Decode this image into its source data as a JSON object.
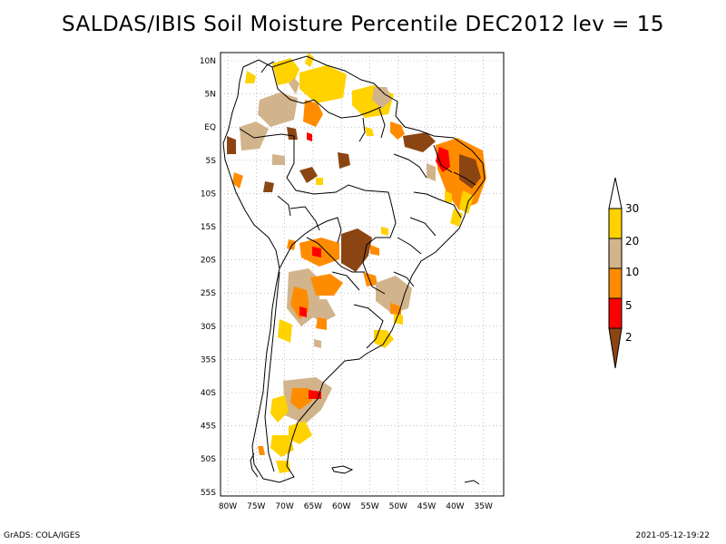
{
  "title": "SALDAS/IBIS Soil Moisture Percentile DEC2012 lev = 15",
  "lat_labels": [
    "10N",
    "5N",
    "EQ",
    "5S",
    "10S",
    "15S",
    "20S",
    "25S",
    "30S",
    "35S",
    "40S",
    "45S",
    "50S",
    "55S"
  ],
  "lon_labels": [
    "80W",
    "75W",
    "70W",
    "65W",
    "60W",
    "55W",
    "50W",
    "45W",
    "40W",
    "35W"
  ],
  "colorbar": {
    "labels": [
      "30",
      "20",
      "10",
      "5",
      "2"
    ],
    "colors": {
      "above_30": "#ffffff",
      "20_30": "#ffd200",
      "10_20": "#d2b48c",
      "5_10": "#ff8c00",
      "2_5": "#ff0000",
      "below_2": "#8b4513"
    }
  },
  "footer": {
    "left": "GrADS: COLA/IGES",
    "right": "2021-05-12-19:22"
  }
}
